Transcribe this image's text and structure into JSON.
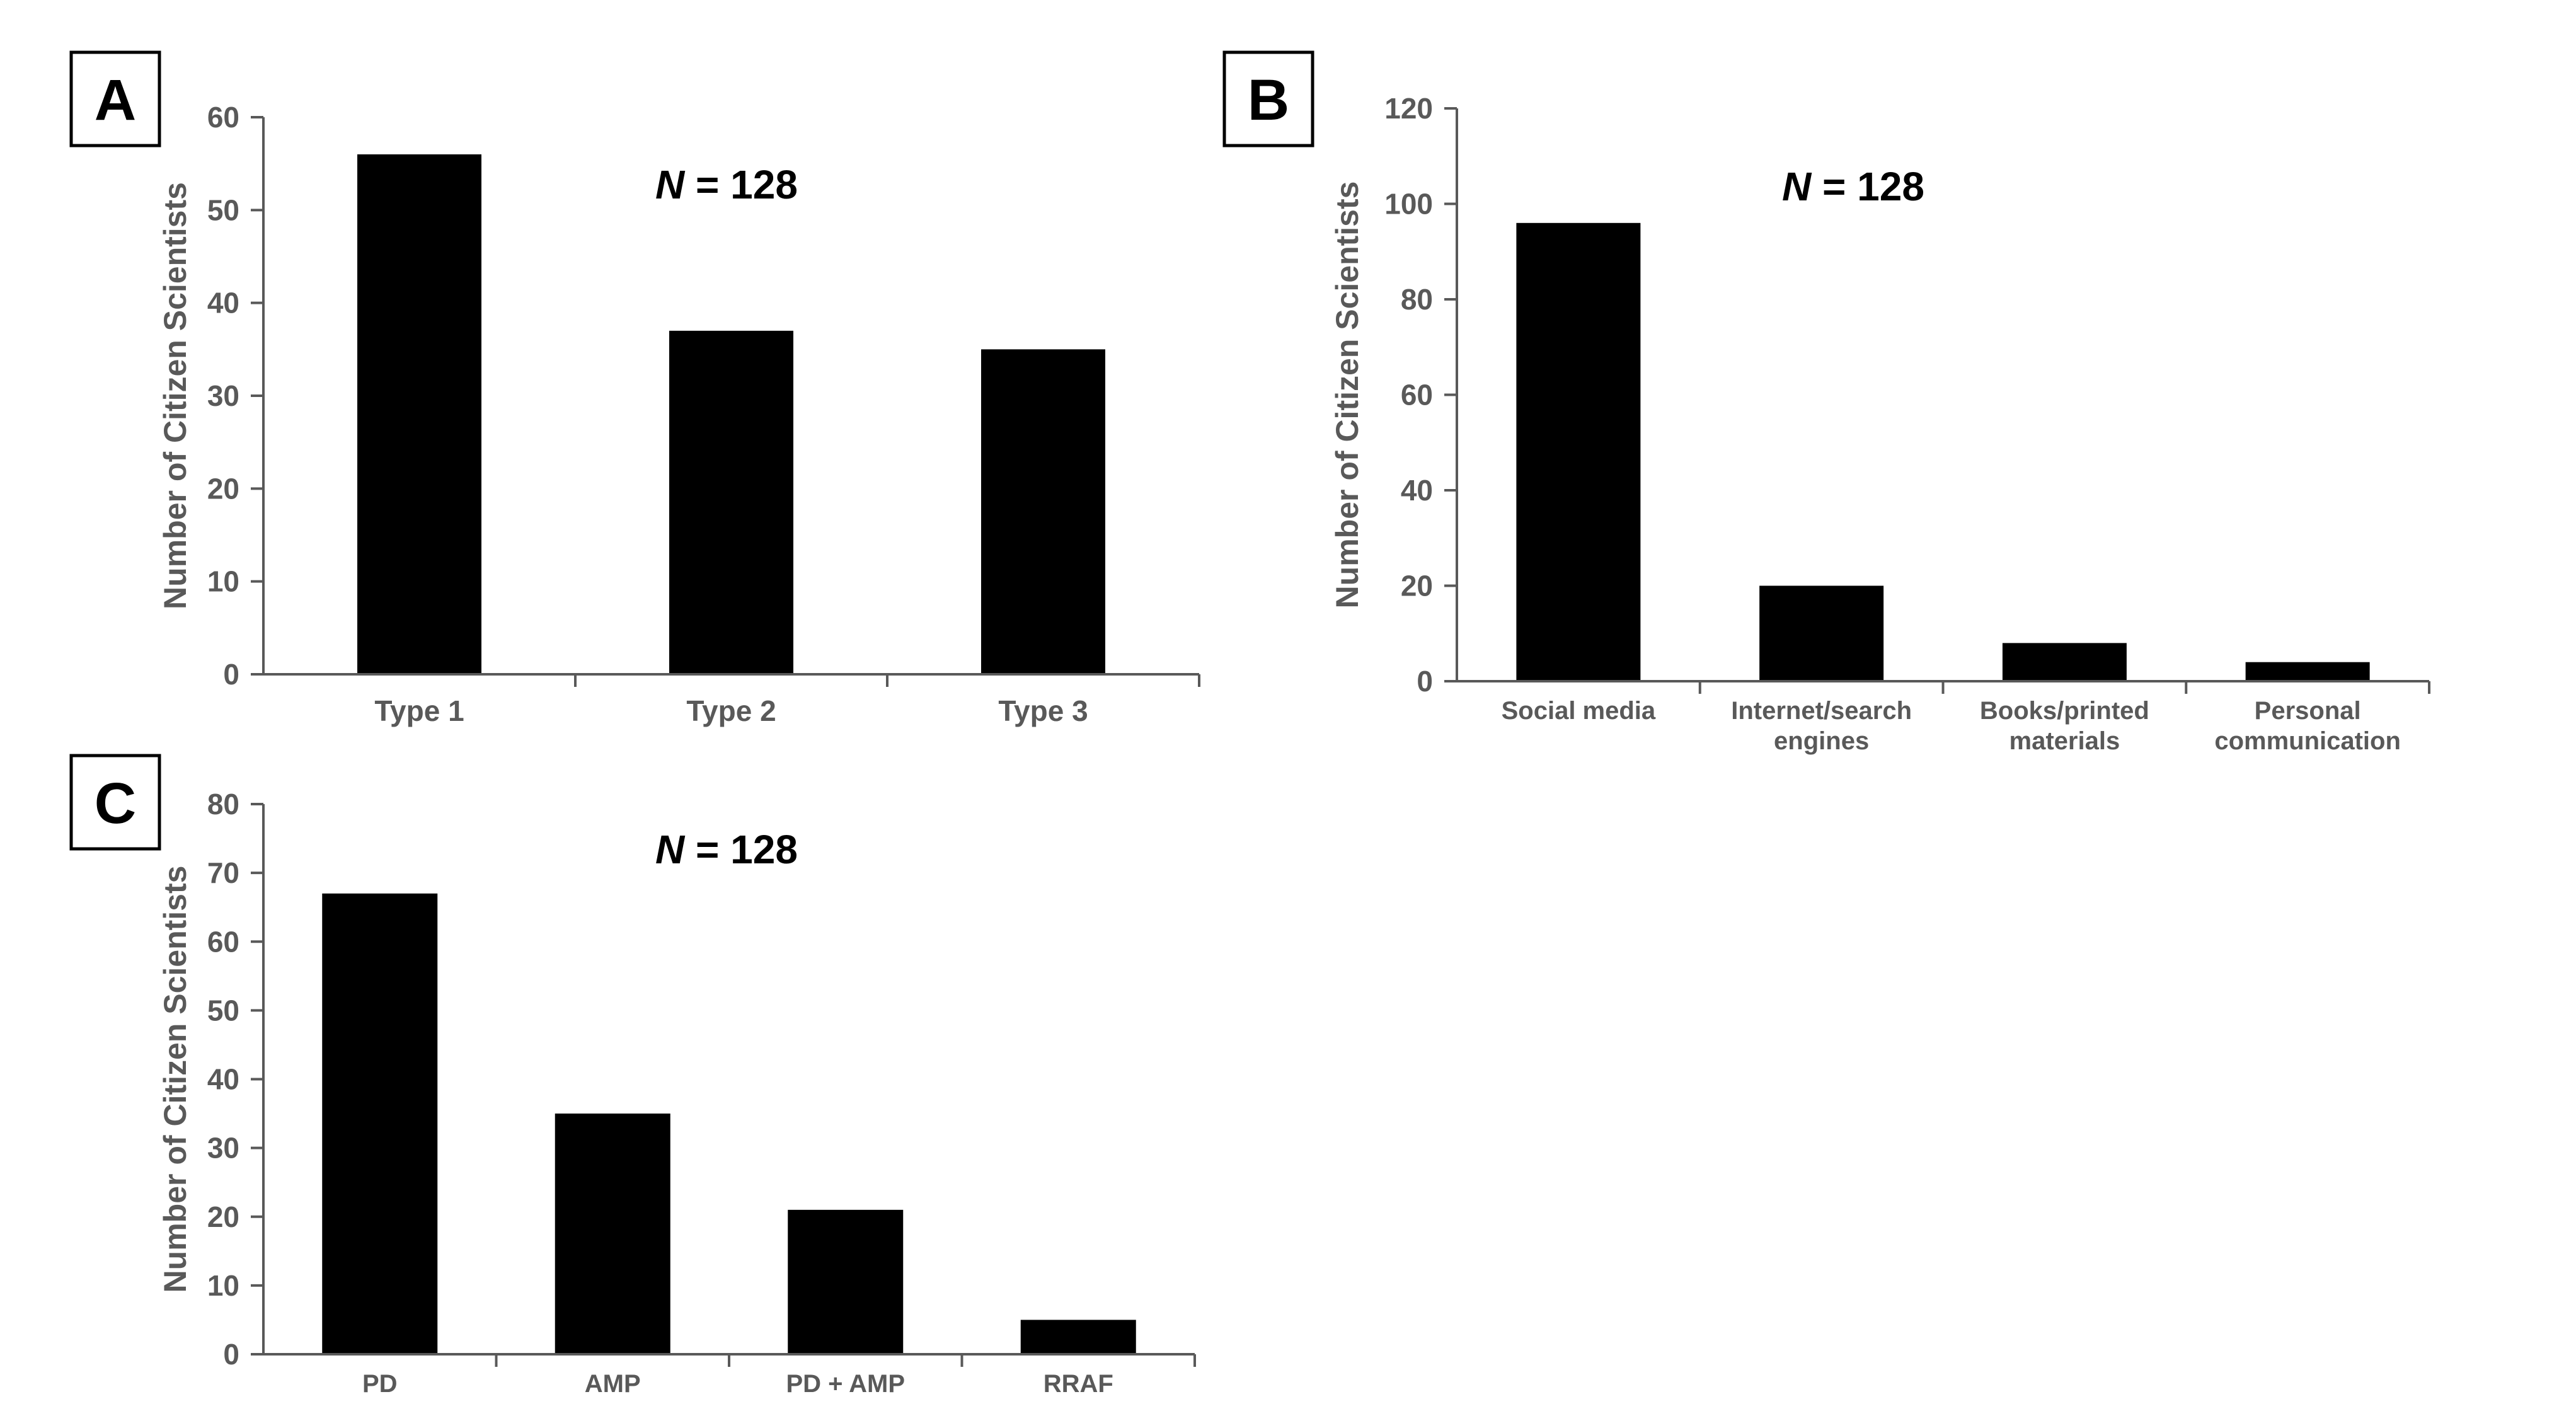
{
  "chart_data": [
    {
      "panel": "A",
      "type": "bar",
      "annotation": {
        "n_symbol": "N",
        "n_text": " = 128"
      },
      "ylabel": "Number of Citizen Scientists",
      "xlabel": "",
      "categories": [
        [
          "Type 1"
        ],
        [
          "Type 2"
        ],
        [
          "Type 3"
        ]
      ],
      "values": [
        56,
        37,
        35
      ],
      "ylim": [
        0,
        60
      ],
      "yticks": [
        0,
        10,
        20,
        30,
        40,
        50,
        60
      ],
      "grid": false,
      "bar_color": "#000000"
    },
    {
      "panel": "B",
      "type": "bar",
      "annotation": {
        "n_symbol": "N",
        "n_text": " = 128"
      },
      "ylabel": "Number of Citizen Scientists",
      "xlabel": "",
      "categories": [
        [
          "Social media"
        ],
        [
          "Internet/search",
          "engines"
        ],
        [
          "Books/printed",
          "materials"
        ],
        [
          "Personal",
          "communication"
        ]
      ],
      "values": [
        96,
        20,
        8,
        4
      ],
      "ylim": [
        0,
        120
      ],
      "yticks": [
        0,
        20,
        40,
        60,
        80,
        100,
        120
      ],
      "grid": false,
      "bar_color": "#000000"
    },
    {
      "panel": "C",
      "type": "bar",
      "annotation": {
        "n_symbol": "N",
        "n_text": " = 128"
      },
      "ylabel": "Number of Citizen Scientists",
      "xlabel": "",
      "categories": [
        [
          "PD"
        ],
        [
          "AMP"
        ],
        [
          "PD + AMP"
        ],
        [
          "RRAF"
        ]
      ],
      "values": [
        67,
        35,
        21,
        5
      ],
      "ylim": [
        0,
        80
      ],
      "yticks": [
        0,
        10,
        20,
        30,
        40,
        50,
        60,
        70,
        80
      ],
      "grid": false,
      "bar_color": "#000000"
    }
  ]
}
